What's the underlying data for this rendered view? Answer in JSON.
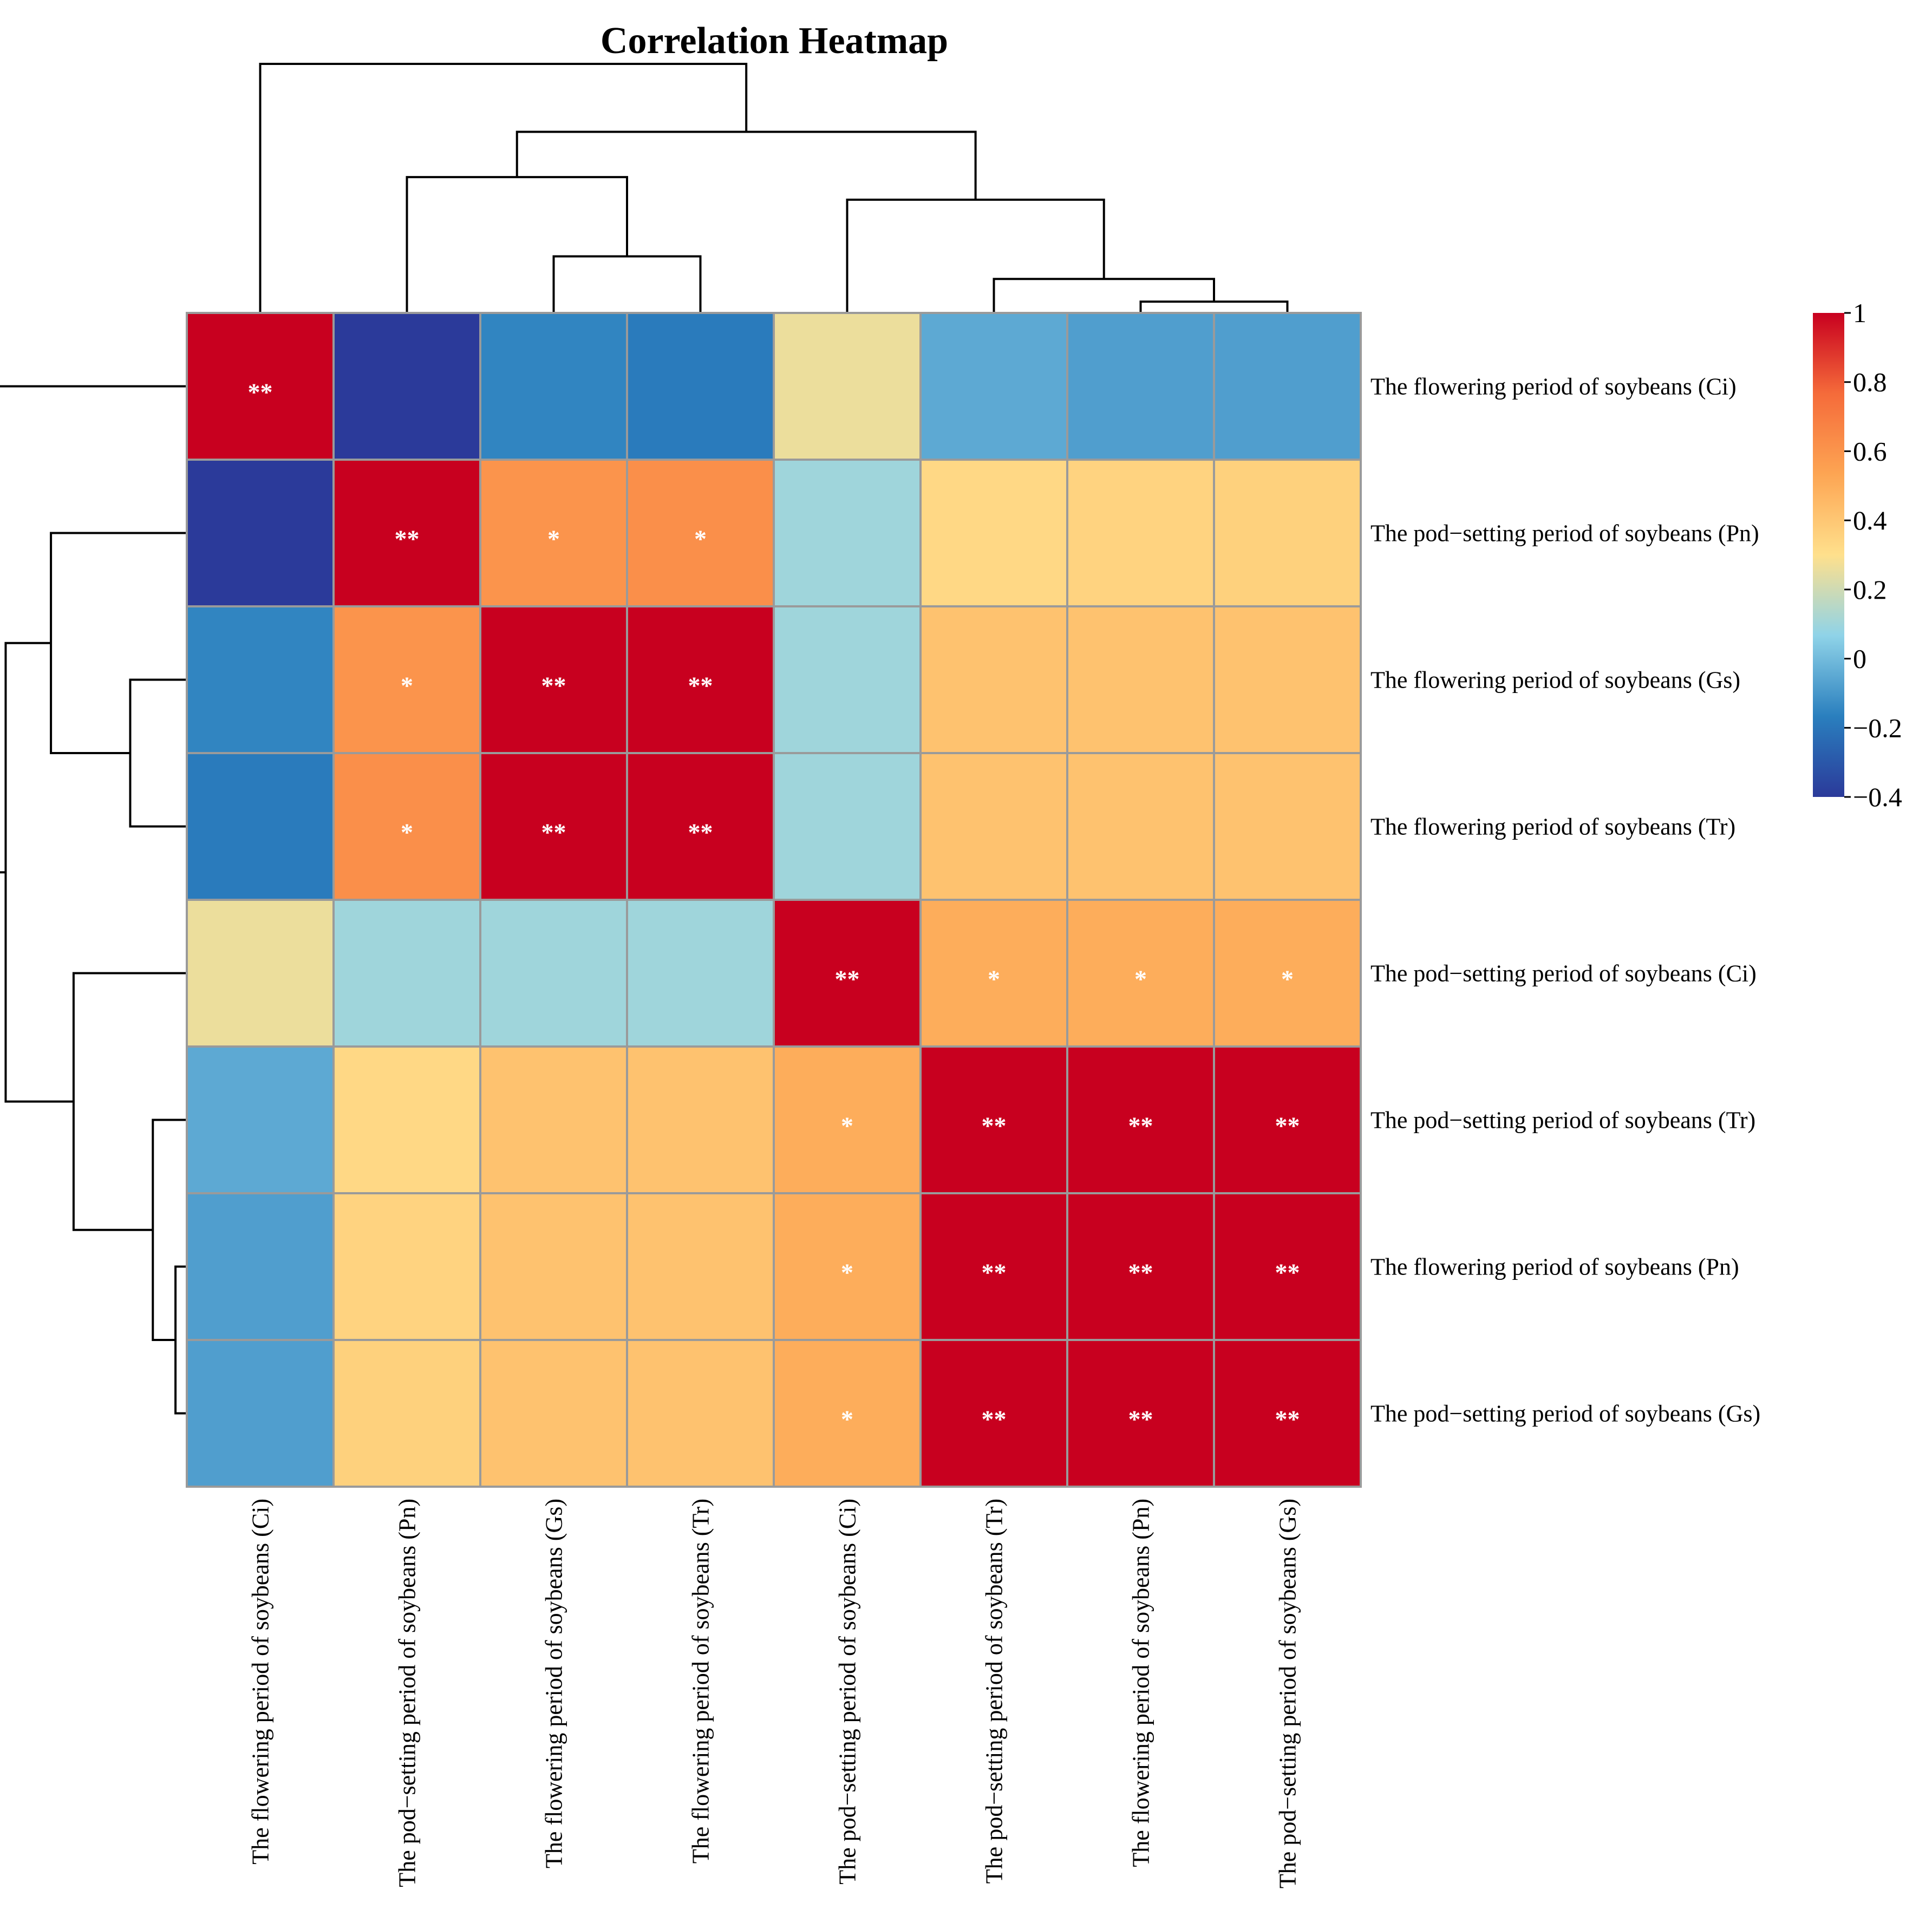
{
  "chart_data": {
    "type": "heatmap",
    "title": "Correlation Heatmap",
    "labels": [
      "The flowering period of soybeans (Ci)",
      "The pod−setting period of soybeans (Pn)",
      "The flowering period of soybeans (Gs)",
      "The flowering period of soybeans (Tr)",
      "The pod−setting period of soybeans (Ci)",
      "The pod−setting period of soybeans (Tr)",
      "The flowering period of soybeans (Pn)",
      "The pod−setting period of soybeans (Gs)"
    ],
    "values": [
      [
        1.0,
        -0.4,
        -0.15,
        -0.18,
        0.26,
        -0.05,
        -0.08,
        -0.08
      ],
      [
        -0.4,
        1.0,
        0.6,
        0.62,
        0.1,
        0.33,
        0.35,
        0.36
      ],
      [
        -0.15,
        0.6,
        1.0,
        1.0,
        0.1,
        0.42,
        0.42,
        0.42
      ],
      [
        -0.18,
        0.62,
        1.0,
        1.0,
        0.1,
        0.42,
        0.42,
        0.42
      ],
      [
        0.26,
        0.1,
        0.1,
        0.1,
        1.0,
        0.5,
        0.5,
        0.5
      ],
      [
        -0.05,
        0.33,
        0.42,
        0.42,
        0.5,
        1.0,
        1.0,
        1.0
      ],
      [
        -0.08,
        0.35,
        0.42,
        0.42,
        0.5,
        1.0,
        1.0,
        1.0
      ],
      [
        -0.08,
        0.36,
        0.42,
        0.42,
        0.5,
        1.0,
        1.0,
        1.0
      ]
    ],
    "significance": [
      [
        "**",
        "",
        "",
        "",
        "",
        "",
        "",
        ""
      ],
      [
        "",
        "**",
        "*",
        "*",
        "",
        "",
        "",
        ""
      ],
      [
        "",
        "*",
        "**",
        "**",
        "",
        "",
        "",
        ""
      ],
      [
        "",
        "*",
        "**",
        "**",
        "",
        "",
        "",
        ""
      ],
      [
        "",
        "",
        "",
        "",
        "**",
        "*",
        "*",
        "*"
      ],
      [
        "",
        "",
        "",
        "",
        "*",
        "**",
        "**",
        "**"
      ],
      [
        "",
        "",
        "",
        "",
        "*",
        "**",
        "**",
        "**"
      ],
      [
        "",
        "",
        "",
        "",
        "*",
        "**",
        "**",
        "**"
      ]
    ],
    "colorbar": {
      "range": [
        -0.4,
        1
      ],
      "ticks": [
        1,
        0.8,
        0.6,
        0.4,
        0.2,
        0,
        -0.2,
        -0.4
      ],
      "tick_labels": [
        "1",
        "0.8",
        "0.6",
        "0.4",
        "0.2",
        "0",
        "−0.2",
        "−0.4"
      ],
      "colors": [
        "#2B3A9A",
        "#2A7FBE",
        "#8FD3E8",
        "#FFE08C",
        "#FDA553",
        "#F56B3A",
        "#C8001F"
      ]
    },
    "dendrogram_merges": [
      [
        6,
        7,
        0.1
      ],
      [
        5,
        8,
        0.3
      ],
      [
        2,
        3,
        0.5
      ],
      [
        4,
        9,
        1.0
      ],
      [
        1,
        10,
        1.2
      ],
      [
        11,
        12,
        1.6
      ],
      [
        0,
        13,
        2.2
      ]
    ],
    "legend": "right"
  }
}
